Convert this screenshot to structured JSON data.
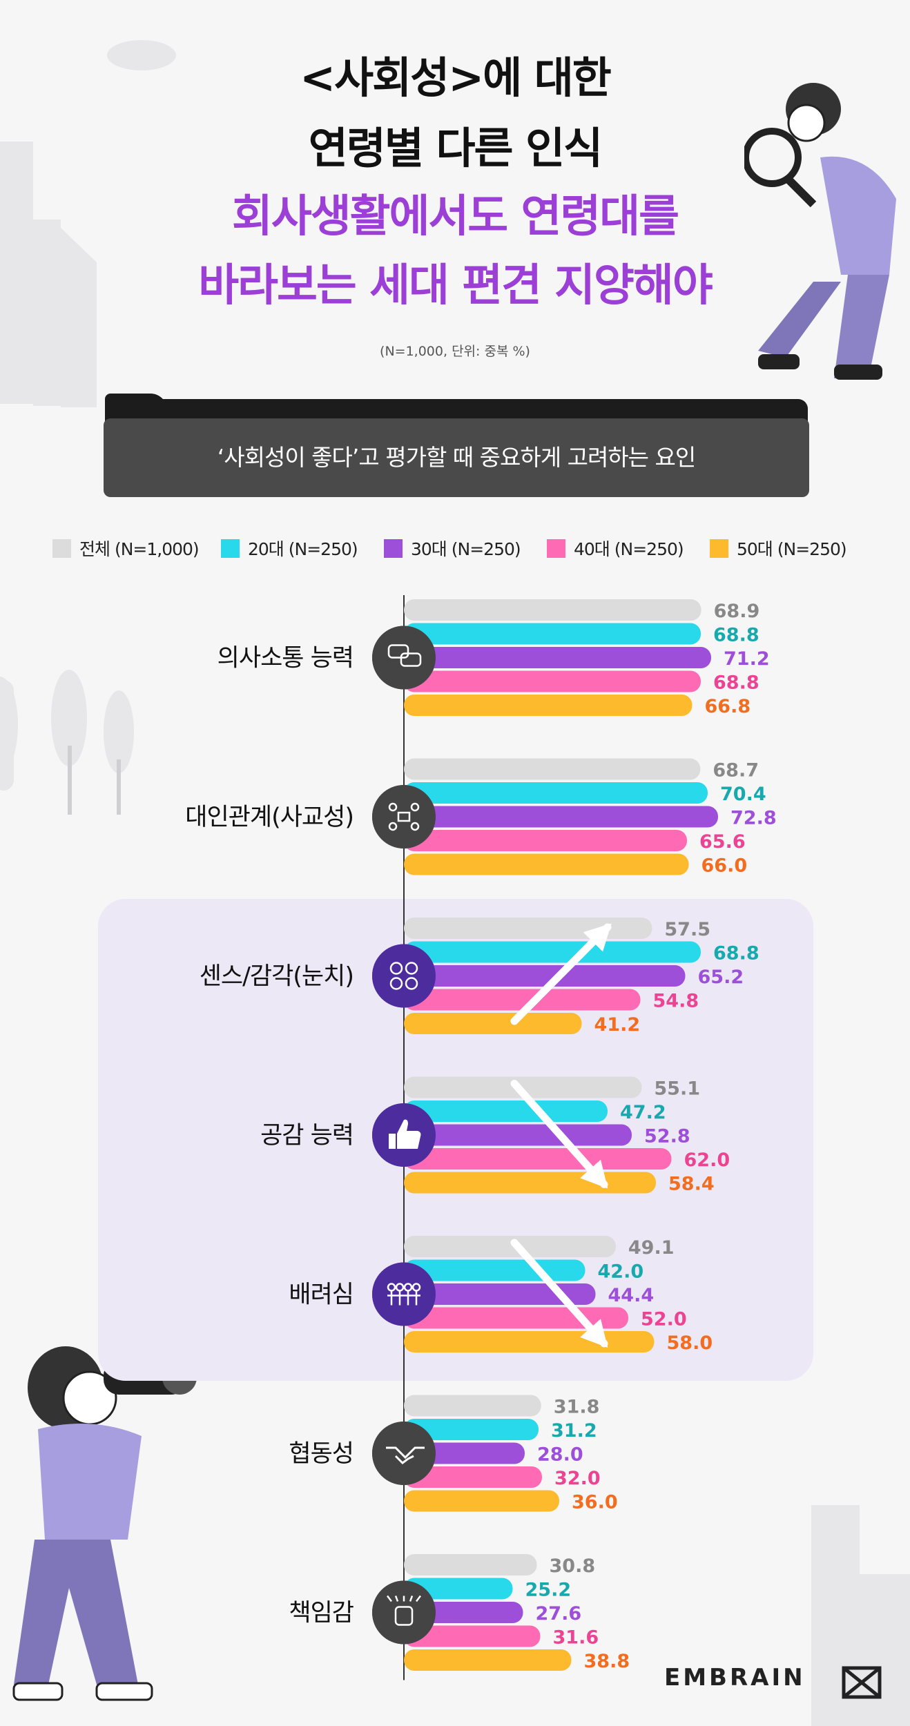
{
  "title": {
    "line1": "<사회성>에 대한",
    "line2": "연령별 다른 인식",
    "line3": "회사생활에서도 연령대를",
    "line4": "바라보는 세대 편견 지양해야"
  },
  "note": "(N=1,000, 단위: 중복 %)",
  "banner": "‘사회성이 좋다’고 평가할 때 중요하게 고려하는 요인",
  "logo": "EMBRAIN",
  "chart_data": {
    "type": "bar",
    "orientation": "horizontal",
    "categories": [
      "의사소통 능력",
      "대인관계(사교성)",
      "센스/감각(눈치)",
      "공감 능력",
      "배려심",
      "협동성",
      "책임감"
    ],
    "category_icons": [
      "speech-bubbles-icon",
      "network-people-icon",
      "emotions-icon",
      "thumbs-up-icon",
      "people-group-icon",
      "handshake-icon",
      "raised-fist-icon"
    ],
    "series": [
      {
        "name": "전체 (N=1,000)",
        "color": "#dcdcdc",
        "label_color": "#888888",
        "values": [
          68.9,
          68.7,
          57.5,
          55.1,
          49.1,
          31.8,
          30.8
        ]
      },
      {
        "name": "20대 (N=250)",
        "color": "#27d9ea",
        "label_color": "#17a9ae",
        "values": [
          68.8,
          70.4,
          68.8,
          47.2,
          42.0,
          31.2,
          25.2
        ]
      },
      {
        "name": "30대 (N=250)",
        "color": "#9d4fd9",
        "label_color": "#9d4fd9",
        "values": [
          71.2,
          72.8,
          65.2,
          52.8,
          44.4,
          28.0,
          27.6
        ]
      },
      {
        "name": "40대 (N=250)",
        "color": "#ff6ab5",
        "label_color": "#ec4392",
        "values": [
          68.8,
          65.6,
          54.8,
          62.0,
          52.0,
          32.0,
          31.6
        ]
      },
      {
        "name": "50대 (N=250)",
        "color": "#fdba2c",
        "label_color": "#f26d1f",
        "values": [
          66.8,
          66.0,
          41.2,
          58.4,
          58.0,
          36.0,
          38.8
        ]
      }
    ],
    "value_labels": [
      [
        "68.9",
        "68.8",
        "71.2",
        "68.8",
        "66.8"
      ],
      [
        "68.7",
        "70.4",
        "72.8",
        "65.6",
        "66.0"
      ],
      [
        "57.5",
        "68.8",
        "65.2",
        "54.8",
        "41.2"
      ],
      [
        "55.1",
        "47.2",
        "52.8",
        "62.0",
        "58.4"
      ],
      [
        "49.1",
        "42.0",
        "44.4",
        "52.0",
        "58.0"
      ],
      [
        "31.8",
        "31.2",
        "28.0",
        "32.0",
        "36.0"
      ],
      [
        "30.8",
        "25.2",
        "27.6",
        "31.6",
        "38.8"
      ]
    ],
    "highlighted_categories": [
      "센스/감각(눈치)",
      "공감 능력",
      "배려심"
    ],
    "trend_arrows": {
      "센스/감각(눈치)": "up",
      "공감 능력": "down",
      "배려심": "down"
    },
    "xlim": [
      0,
      100
    ],
    "grid": false,
    "legend_position": "top"
  }
}
